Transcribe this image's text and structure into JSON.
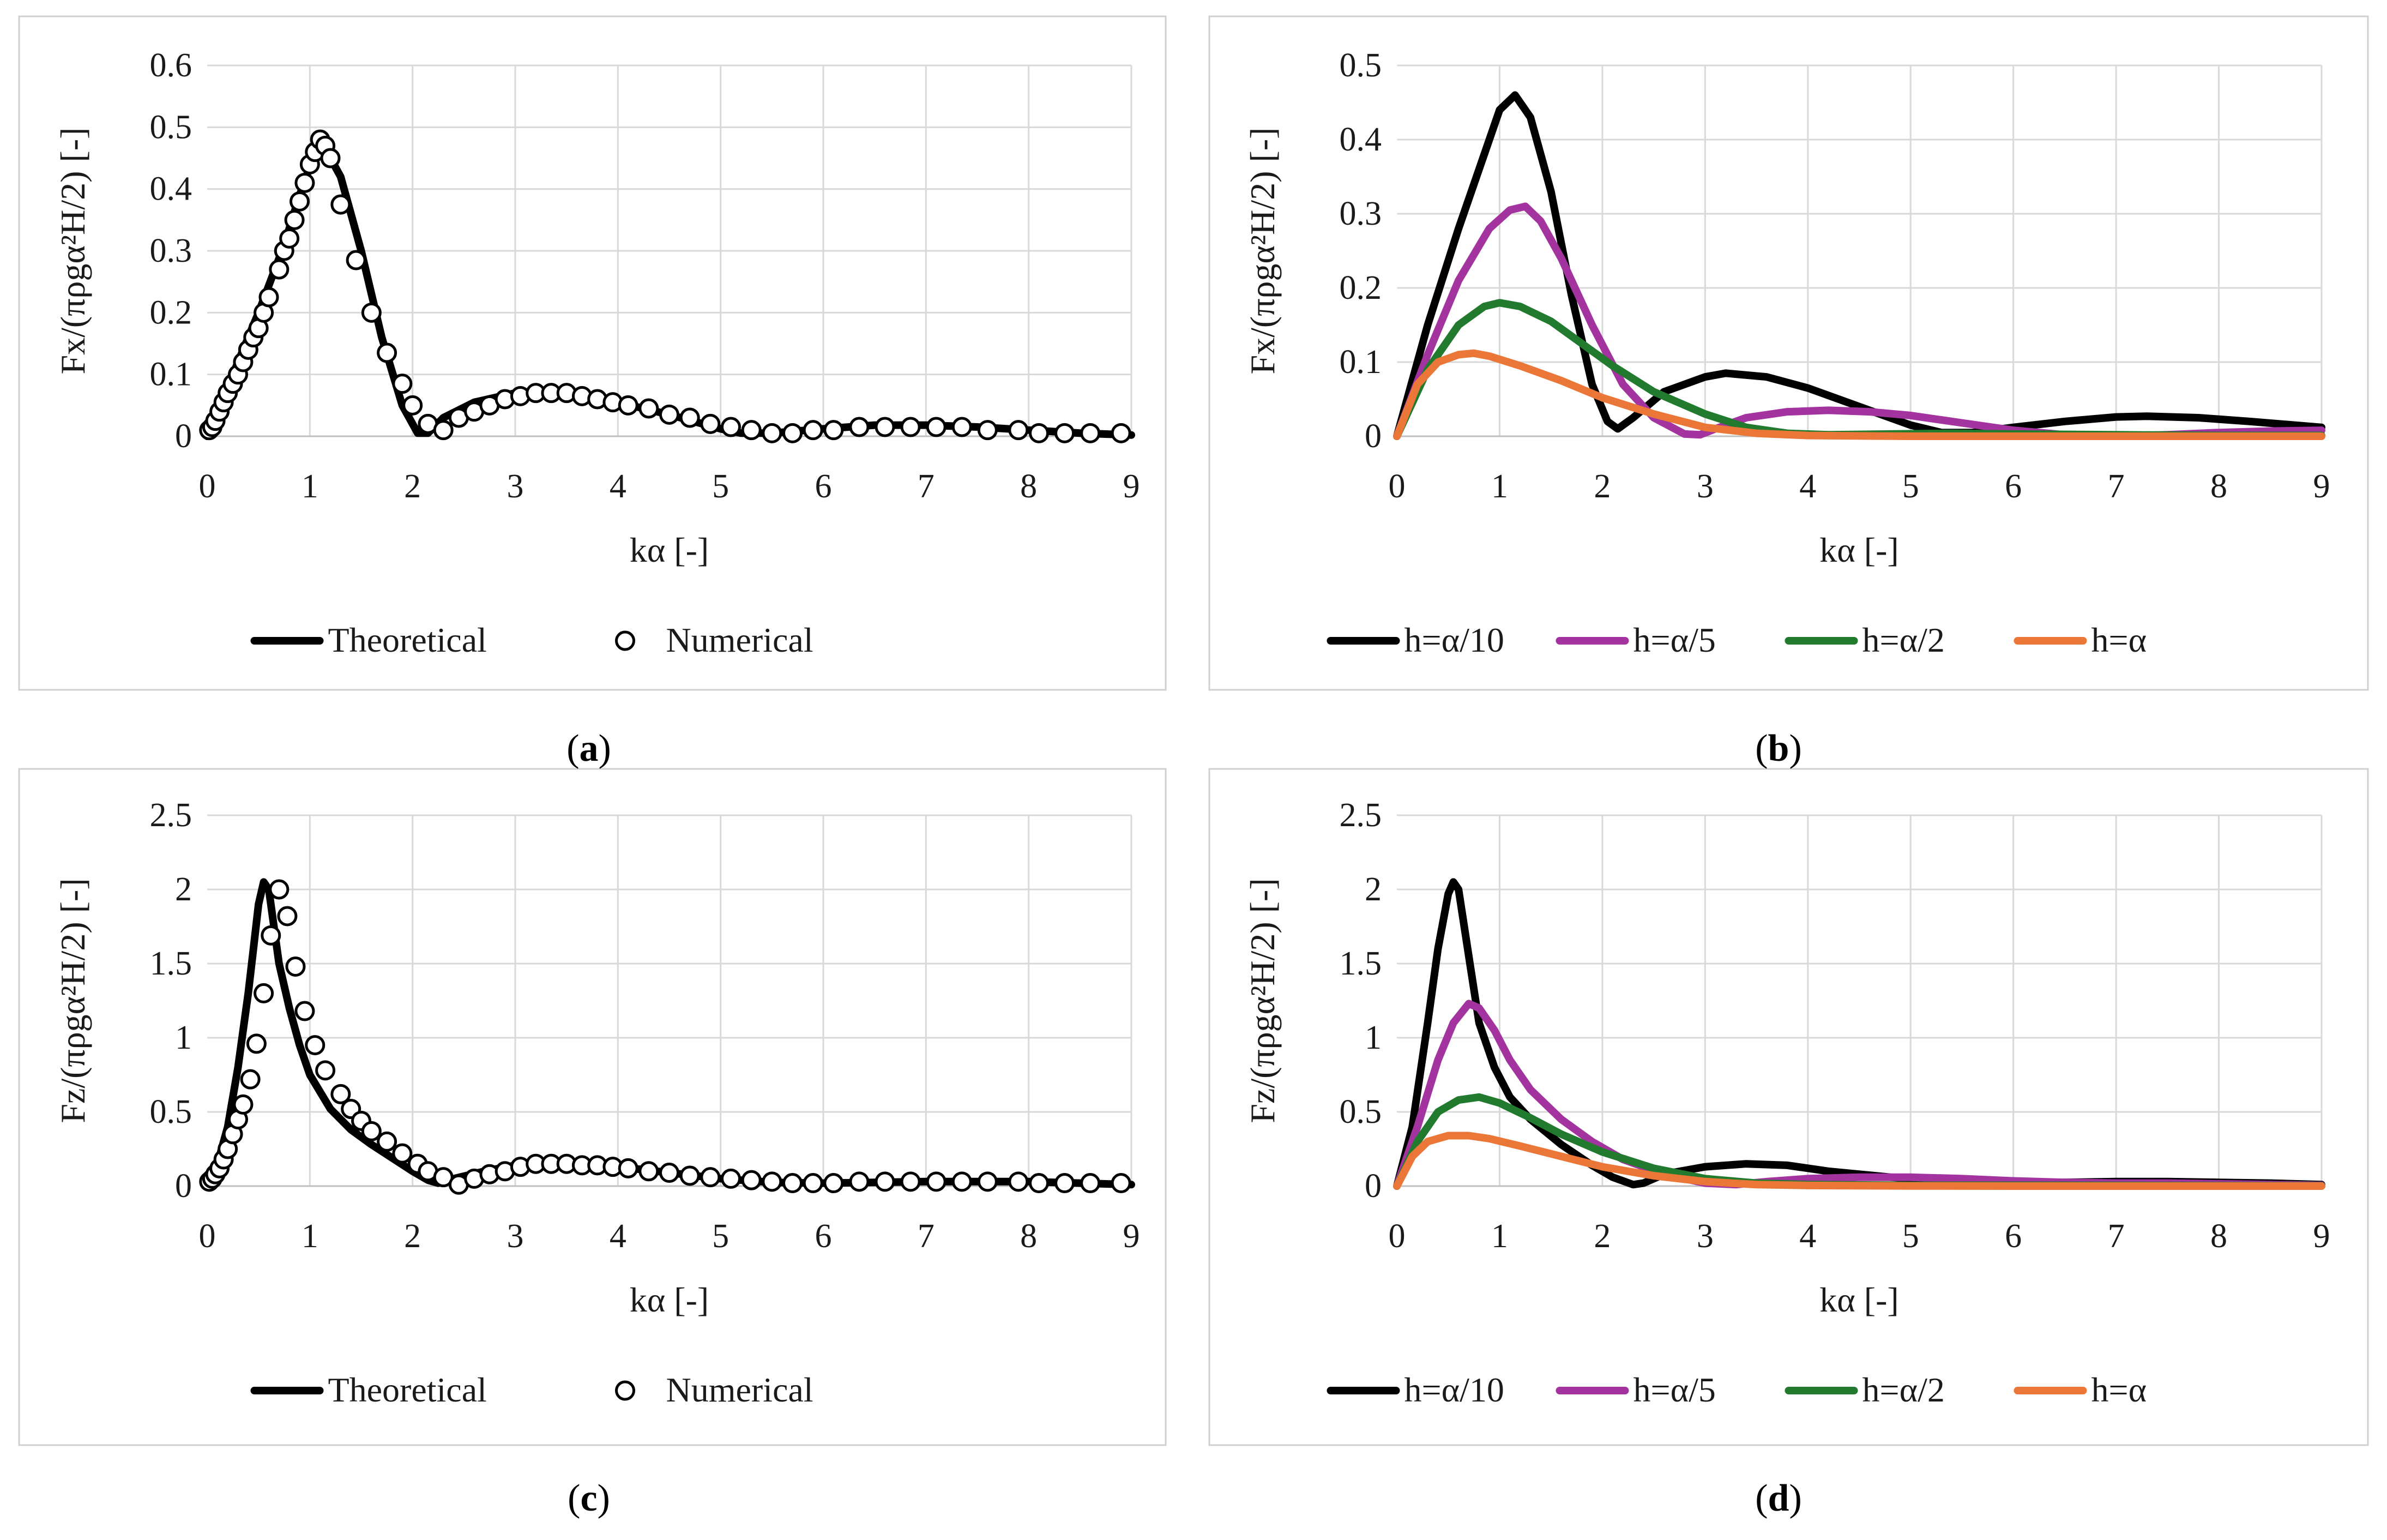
{
  "figure": {
    "captions": [
      {
        "open": "(",
        "letter": "a",
        "close": ")"
      },
      {
        "open": "(",
        "letter": "b",
        "close": ")"
      },
      {
        "open": "(",
        "letter": "c",
        "close": ")"
      },
      {
        "open": "(",
        "letter": "d",
        "close": ")"
      }
    ]
  },
  "colors": {
    "black": "#000000",
    "purple": "#a3339f",
    "green": "#217a2e",
    "orange": "#ea7737"
  },
  "chart_data": [
    {
      "id": "a",
      "type": "line",
      "xlabel": "kα [-]",
      "ylabel": "Fx/(πρgα²H/2) [-]",
      "xlim": [
        0,
        9
      ],
      "ylim": [
        0,
        0.6
      ],
      "xticks": [
        0,
        1,
        2,
        3,
        4,
        5,
        6,
        7,
        8,
        9
      ],
      "yticks": [
        0,
        0.1,
        0.2,
        0.3,
        0.4,
        0.5,
        0.6
      ],
      "grid": true,
      "legend_position": "bottom",
      "series": [
        {
          "name": "Theoretical",
          "style": "line",
          "color": "#000000",
          "x": [
            0,
            0.25,
            0.5,
            0.75,
            0.9,
            1.05,
            1.15,
            1.3,
            1.5,
            1.7,
            1.9,
            2.05,
            2.15,
            2.3,
            2.6,
            3.0,
            3.3,
            3.6,
            4.0,
            4.5,
            5.0,
            5.2,
            5.5,
            6.0,
            6.5,
            7.0,
            7.5,
            8.0,
            8.5,
            9.0
          ],
          "y": [
            0,
            0.1,
            0.2,
            0.31,
            0.39,
            0.46,
            0.465,
            0.42,
            0.3,
            0.16,
            0.05,
            0.005,
            0.005,
            0.03,
            0.055,
            0.07,
            0.072,
            0.068,
            0.055,
            0.035,
            0.012,
            0.005,
            0.005,
            0.012,
            0.018,
            0.018,
            0.015,
            0.01,
            0.005,
            0.002
          ]
        },
        {
          "name": "Numerical",
          "style": "marker",
          "color": "#000000",
          "x": [
            0.02,
            0.05,
            0.08,
            0.12,
            0.16,
            0.2,
            0.25,
            0.3,
            0.35,
            0.4,
            0.45,
            0.5,
            0.55,
            0.6,
            0.7,
            0.75,
            0.8,
            0.85,
            0.9,
            0.95,
            1.0,
            1.05,
            1.1,
            1.15,
            1.2,
            1.3,
            1.45,
            1.6,
            1.75,
            1.9,
            2.0,
            2.15,
            2.3,
            2.45,
            2.6,
            2.75,
            2.9,
            3.05,
            3.2,
            3.35,
            3.5,
            3.65,
            3.8,
            3.95,
            4.1,
            4.3,
            4.5,
            4.7,
            4.9,
            5.1,
            5.3,
            5.5,
            5.7,
            5.9,
            6.1,
            6.35,
            6.6,
            6.85,
            7.1,
            7.35,
            7.6,
            7.9,
            8.1,
            8.35,
            8.6,
            8.9
          ],
          "y": [
            0.01,
            0.015,
            0.025,
            0.04,
            0.055,
            0.07,
            0.085,
            0.1,
            0.12,
            0.14,
            0.16,
            0.175,
            0.2,
            0.225,
            0.27,
            0.3,
            0.32,
            0.35,
            0.38,
            0.41,
            0.44,
            0.46,
            0.48,
            0.47,
            0.45,
            0.375,
            0.285,
            0.2,
            0.135,
            0.085,
            0.05,
            0.02,
            0.01,
            0.03,
            0.04,
            0.05,
            0.06,
            0.065,
            0.07,
            0.07,
            0.07,
            0.065,
            0.06,
            0.055,
            0.05,
            0.045,
            0.035,
            0.03,
            0.02,
            0.015,
            0.01,
            0.005,
            0.005,
            0.01,
            0.01,
            0.015,
            0.015,
            0.015,
            0.015,
            0.015,
            0.01,
            0.01,
            0.005,
            0.005,
            0.005,
            0.005
          ]
        }
      ],
      "legend": [
        "Theoretical",
        "Numerical"
      ]
    },
    {
      "id": "b",
      "type": "line",
      "xlabel": "kα [-]",
      "ylabel": "Fx/(πρgα²H/2) [-]",
      "xlim": [
        0,
        9
      ],
      "ylim": [
        0,
        0.5
      ],
      "xticks": [
        0,
        1,
        2,
        3,
        4,
        5,
        6,
        7,
        8,
        9
      ],
      "yticks": [
        0,
        0.1,
        0.2,
        0.3,
        0.4,
        0.5
      ],
      "grid": true,
      "legend_position": "bottom",
      "series": [
        {
          "name": "h=α/10",
          "style": "line",
          "color": "#000000",
          "x": [
            0,
            0.3,
            0.6,
            0.85,
            1.0,
            1.15,
            1.3,
            1.5,
            1.7,
            1.9,
            2.05,
            2.15,
            2.3,
            2.6,
            3.0,
            3.2,
            3.6,
            4.0,
            4.5,
            5.0,
            5.3,
            5.6,
            6.0,
            6.5,
            7.0,
            7.3,
            7.8,
            8.3,
            9.0
          ],
          "y": [
            0,
            0.15,
            0.28,
            0.38,
            0.44,
            0.46,
            0.43,
            0.33,
            0.19,
            0.07,
            0.02,
            0.01,
            0.025,
            0.06,
            0.08,
            0.085,
            0.08,
            0.065,
            0.04,
            0.015,
            0.005,
            0.005,
            0.012,
            0.02,
            0.026,
            0.027,
            0.025,
            0.02,
            0.012
          ]
        },
        {
          "name": "h=α/5",
          "style": "line",
          "color": "#a3339f",
          "x": [
            0,
            0.3,
            0.6,
            0.9,
            1.1,
            1.25,
            1.4,
            1.6,
            1.9,
            2.2,
            2.5,
            2.8,
            2.95,
            3.1,
            3.4,
            3.8,
            4.2,
            4.6,
            5.0,
            5.5,
            6.0,
            6.5,
            7.0,
            7.5,
            8.0,
            8.5,
            9.0
          ],
          "y": [
            0,
            0.11,
            0.21,
            0.28,
            0.305,
            0.31,
            0.29,
            0.24,
            0.15,
            0.07,
            0.025,
            0.003,
            0.002,
            0.01,
            0.025,
            0.033,
            0.035,
            0.033,
            0.028,
            0.018,
            0.008,
            0.002,
            0.0,
            0.002,
            0.005,
            0.007,
            0.008
          ]
        },
        {
          "name": "h=α/2",
          "style": "line",
          "color": "#217a2e",
          "x": [
            0,
            0.3,
            0.6,
            0.85,
            1.0,
            1.2,
            1.5,
            1.8,
            2.1,
            2.5,
            3.0,
            3.4,
            3.8,
            4.2,
            4.8,
            5.4,
            6.0,
            7.0,
            8.0,
            9.0
          ],
          "y": [
            0,
            0.09,
            0.15,
            0.175,
            0.18,
            0.175,
            0.155,
            0.125,
            0.095,
            0.06,
            0.03,
            0.012,
            0.004,
            0.002,
            0.003,
            0.004,
            0.003,
            0.002,
            0.001,
            0.001
          ]
        },
        {
          "name": "h=α",
          "style": "line",
          "color": "#ea7737",
          "x": [
            0,
            0.2,
            0.4,
            0.6,
            0.75,
            0.9,
            1.2,
            1.6,
            2.0,
            2.5,
            3.0,
            3.5,
            4.0,
            5.0,
            6.0,
            7.0,
            8.0,
            9.0
          ],
          "y": [
            0,
            0.07,
            0.1,
            0.11,
            0.112,
            0.108,
            0.095,
            0.075,
            0.052,
            0.03,
            0.012,
            0.004,
            0.001,
            0.0,
            0.0,
            0.0,
            0.0,
            0.0
          ]
        }
      ],
      "legend": [
        "h=α/10",
        "h=α/5",
        "h=α/2",
        "h=α"
      ]
    },
    {
      "id": "c",
      "type": "line",
      "xlabel": "kα [-]",
      "ylabel": "Fz/(πρgα²H/2) [-]",
      "xlim": [
        0,
        9
      ],
      "ylim": [
        0,
        2.5
      ],
      "xticks": [
        0,
        1,
        2,
        3,
        4,
        5,
        6,
        7,
        8,
        9
      ],
      "yticks": [
        0,
        0.5,
        1,
        1.5,
        2,
        2.5
      ],
      "grid": true,
      "legend_position": "bottom",
      "series": [
        {
          "name": "Theoretical",
          "style": "line",
          "color": "#000000",
          "x": [
            0,
            0.1,
            0.2,
            0.3,
            0.4,
            0.45,
            0.5,
            0.55,
            0.6,
            0.65,
            0.7,
            0.8,
            0.9,
            1.0,
            1.2,
            1.4,
            1.6,
            1.8,
            2.0,
            2.15,
            2.25,
            2.4,
            2.7,
            3.0,
            3.3,
            3.6,
            4.0,
            4.5,
            5.0,
            5.5,
            6.0,
            6.5,
            7.0,
            7.5,
            8.0,
            8.5,
            9.0
          ],
          "y": [
            0,
            0.15,
            0.4,
            0.8,
            1.3,
            1.6,
            1.9,
            2.05,
            2.0,
            1.75,
            1.5,
            1.2,
            0.95,
            0.75,
            0.52,
            0.38,
            0.28,
            0.19,
            0.1,
            0.04,
            0.02,
            0.05,
            0.1,
            0.14,
            0.15,
            0.15,
            0.13,
            0.09,
            0.05,
            0.025,
            0.02,
            0.025,
            0.03,
            0.03,
            0.03,
            0.02,
            0.01
          ]
        },
        {
          "name": "Numerical",
          "style": "marker",
          "color": "#000000",
          "x": [
            0.02,
            0.05,
            0.08,
            0.12,
            0.16,
            0.2,
            0.25,
            0.3,
            0.35,
            0.42,
            0.48,
            0.55,
            0.62,
            0.7,
            0.78,
            0.86,
            0.95,
            1.05,
            1.15,
            1.3,
            1.4,
            1.5,
            1.6,
            1.75,
            1.9,
            2.05,
            2.15,
            2.3,
            2.45,
            2.6,
            2.75,
            2.9,
            3.05,
            3.2,
            3.35,
            3.5,
            3.65,
            3.8,
            3.95,
            4.1,
            4.3,
            4.5,
            4.7,
            4.9,
            5.1,
            5.3,
            5.5,
            5.7,
            5.9,
            6.1,
            6.35,
            6.6,
            6.85,
            7.1,
            7.35,
            7.6,
            7.9,
            8.1,
            8.35,
            8.6,
            8.9
          ],
          "y": [
            0.03,
            0.05,
            0.08,
            0.12,
            0.18,
            0.25,
            0.35,
            0.45,
            0.55,
            0.72,
            0.96,
            1.3,
            1.69,
            2.0,
            1.82,
            1.48,
            1.18,
            0.95,
            0.78,
            0.62,
            0.52,
            0.44,
            0.37,
            0.3,
            0.22,
            0.15,
            0.1,
            0.06,
            0.01,
            0.05,
            0.08,
            0.1,
            0.13,
            0.15,
            0.15,
            0.15,
            0.14,
            0.14,
            0.13,
            0.12,
            0.1,
            0.09,
            0.07,
            0.06,
            0.05,
            0.04,
            0.03,
            0.02,
            0.02,
            0.02,
            0.03,
            0.03,
            0.03,
            0.03,
            0.03,
            0.03,
            0.03,
            0.02,
            0.02,
            0.02,
            0.02
          ]
        }
      ],
      "legend": [
        "Theoretical",
        "Numerical"
      ]
    },
    {
      "id": "d",
      "type": "line",
      "xlabel": "kα [-]",
      "ylabel": "Fz/(πρgα²H/2) [-]",
      "xlim": [
        0,
        9
      ],
      "ylim": [
        0,
        2.5
      ],
      "xticks": [
        0,
        1,
        2,
        3,
        4,
        5,
        6,
        7,
        8,
        9
      ],
      "yticks": [
        0,
        0.5,
        1,
        1.5,
        2,
        2.5
      ],
      "grid": true,
      "legend_position": "bottom",
      "series": [
        {
          "name": "h=α/10",
          "style": "line",
          "color": "#000000",
          "x": [
            0,
            0.15,
            0.3,
            0.4,
            0.5,
            0.55,
            0.6,
            0.7,
            0.8,
            0.95,
            1.1,
            1.3,
            1.6,
            1.9,
            2.1,
            2.3,
            2.4,
            2.6,
            3.0,
            3.4,
            3.8,
            4.2,
            4.8,
            5.5,
            6.0,
            6.5,
            7.0,
            7.5,
            8.0,
            8.5,
            9.0
          ],
          "y": [
            0,
            0.4,
            1.1,
            1.6,
            1.97,
            2.05,
            2.0,
            1.55,
            1.1,
            0.8,
            0.6,
            0.45,
            0.28,
            0.14,
            0.06,
            0.01,
            0.02,
            0.08,
            0.13,
            0.15,
            0.14,
            0.1,
            0.06,
            0.03,
            0.02,
            0.025,
            0.03,
            0.03,
            0.025,
            0.02,
            0.01
          ]
        },
        {
          "name": "h=α/5",
          "style": "line",
          "color": "#a3339f",
          "x": [
            0,
            0.2,
            0.4,
            0.55,
            0.7,
            0.8,
            0.95,
            1.1,
            1.3,
            1.6,
            1.9,
            2.2,
            2.6,
            3.0,
            3.3,
            3.6,
            4.0,
            4.5,
            5.0,
            5.5,
            6.0,
            6.5,
            7.0,
            7.5,
            8.0,
            8.5,
            9.0
          ],
          "y": [
            0,
            0.4,
            0.85,
            1.1,
            1.23,
            1.2,
            1.05,
            0.85,
            0.65,
            0.45,
            0.3,
            0.18,
            0.08,
            0.02,
            0.01,
            0.03,
            0.05,
            0.06,
            0.06,
            0.05,
            0.035,
            0.025,
            0.02,
            0.02,
            0.015,
            0.01,
            0.005
          ]
        },
        {
          "name": "h=α/2",
          "style": "line",
          "color": "#217a2e",
          "x": [
            0,
            0.2,
            0.4,
            0.6,
            0.8,
            1.0,
            1.3,
            1.6,
            2.0,
            2.5,
            3.0,
            3.5,
            4.0,
            5.0,
            6.0,
            7.0,
            8.0,
            9.0
          ],
          "y": [
            0,
            0.3,
            0.5,
            0.58,
            0.6,
            0.56,
            0.46,
            0.35,
            0.23,
            0.12,
            0.05,
            0.02,
            0.01,
            0.005,
            0.005,
            0.004,
            0.003,
            0.002
          ]
        },
        {
          "name": "h=α",
          "style": "line",
          "color": "#ea7737",
          "x": [
            0,
            0.15,
            0.3,
            0.5,
            0.7,
            0.9,
            1.2,
            1.6,
            2.0,
            2.5,
            3.0,
            3.5,
            4.0,
            5.0,
            6.0,
            7.0,
            8.0,
            9.0
          ],
          "y": [
            0,
            0.2,
            0.3,
            0.34,
            0.34,
            0.32,
            0.27,
            0.2,
            0.13,
            0.07,
            0.03,
            0.01,
            0.004,
            0.001,
            0.0,
            0.0,
            0.0,
            0.0
          ]
        }
      ],
      "legend": [
        "h=α/10",
        "h=α/5",
        "h=α/2",
        "h=α"
      ]
    }
  ]
}
